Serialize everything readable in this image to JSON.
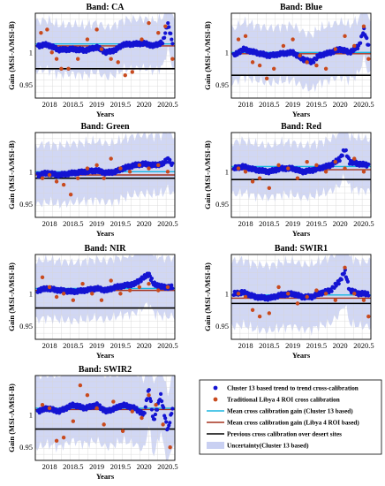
{
  "chart_data": {
    "type": "scatter",
    "panels": [
      {
        "title": "Band: CA",
        "trend": [
          [
            2017.75,
            1.01
          ],
          [
            2017.95,
            1.012
          ],
          [
            2018.2,
            1.004
          ],
          [
            2018.5,
            1.005
          ],
          [
            2018.75,
            1.003
          ],
          [
            2019.0,
            1.008
          ],
          [
            2019.2,
            1.0
          ],
          [
            2019.4,
            1.004
          ],
          [
            2019.55,
            1.012
          ],
          [
            2019.8,
            1.013
          ],
          [
            2020.0,
            1.014
          ],
          [
            2020.2,
            1.01
          ],
          [
            2020.4,
            1.016
          ],
          [
            2020.5,
            1.045
          ],
          [
            2020.6,
            1.015
          ]
        ],
        "mean_cluster": 1.013,
        "mean_libya": 1.01,
        "previous": 0.975,
        "uncertainty_halfwidth": 0.038,
        "libya_points": [
          [
            2017.82,
            1.03
          ],
          [
            2017.95,
            1.035
          ],
          [
            2018.05,
            1.0
          ],
          [
            2018.15,
            0.99
          ],
          [
            2018.25,
            0.975
          ],
          [
            2018.4,
            0.975
          ],
          [
            2018.6,
            0.99
          ],
          [
            2018.8,
            1.02
          ],
          [
            2019.0,
            1.035
          ],
          [
            2019.1,
            1.005
          ],
          [
            2019.3,
            0.99
          ],
          [
            2019.45,
            0.985
          ],
          [
            2019.6,
            0.965
          ],
          [
            2019.75,
            0.97
          ],
          [
            2019.95,
            1.02
          ],
          [
            2020.1,
            1.045
          ],
          [
            2020.3,
            1.03
          ],
          [
            2020.45,
            1.04
          ],
          [
            2020.6,
            0.99
          ]
        ]
      },
      {
        "title": "Band: Blue",
        "trend": [
          [
            2017.75,
            0.995
          ],
          [
            2017.95,
            1.005
          ],
          [
            2018.2,
            1.0
          ],
          [
            2018.5,
            0.995
          ],
          [
            2018.75,
            0.998
          ],
          [
            2019.0,
            1.0
          ],
          [
            2019.2,
            0.99
          ],
          [
            2019.4,
            0.985
          ],
          [
            2019.55,
            0.995
          ],
          [
            2019.8,
            1.0
          ],
          [
            2020.0,
            1.005
          ],
          [
            2020.2,
            1.0
          ],
          [
            2020.4,
            1.01
          ],
          [
            2020.5,
            1.035
          ],
          [
            2020.6,
            1.01
          ]
        ],
        "mean_cluster": 1.0,
        "mean_libya": 0.998,
        "previous": 0.965,
        "uncertainty_halfwidth": 0.042,
        "libya_points": [
          [
            2017.85,
            1.02
          ],
          [
            2018.0,
            1.025
          ],
          [
            2018.15,
            0.985
          ],
          [
            2018.3,
            0.98
          ],
          [
            2018.45,
            0.96
          ],
          [
            2018.6,
            0.975
          ],
          [
            2018.8,
            1.01
          ],
          [
            2019.0,
            1.02
          ],
          [
            2019.15,
            0.995
          ],
          [
            2019.3,
            0.985
          ],
          [
            2019.5,
            0.98
          ],
          [
            2019.7,
            0.975
          ],
          [
            2019.9,
            1.005
          ],
          [
            2020.1,
            1.025
          ],
          [
            2020.3,
            1.01
          ],
          [
            2020.5,
            1.04
          ],
          [
            2020.6,
            0.99
          ]
        ]
      },
      {
        "title": "Band: Green",
        "trend": [
          [
            2017.75,
            0.995
          ],
          [
            2017.95,
            0.998
          ],
          [
            2018.2,
            0.995
          ],
          [
            2018.5,
            0.998
          ],
          [
            2018.75,
            1.0
          ],
          [
            2019.0,
            1.002
          ],
          [
            2019.2,
            0.998
          ],
          [
            2019.4,
            1.0
          ],
          [
            2019.55,
            1.005
          ],
          [
            2019.8,
            1.01
          ],
          [
            2020.0,
            1.012
          ],
          [
            2020.2,
            1.01
          ],
          [
            2020.4,
            1.012
          ],
          [
            2020.5,
            1.02
          ],
          [
            2020.6,
            1.01
          ]
        ],
        "mean_cluster": 1.0,
        "mean_libya": 0.995,
        "previous": 0.99,
        "uncertainty_halfwidth": 0.045,
        "libya_points": [
          [
            2017.85,
            0.99
          ],
          [
            2018.0,
            0.995
          ],
          [
            2018.15,
            0.985
          ],
          [
            2018.3,
            0.98
          ],
          [
            2018.45,
            0.965
          ],
          [
            2018.6,
            0.99
          ],
          [
            2018.8,
            1.005
          ],
          [
            2019.0,
            1.01
          ],
          [
            2019.15,
            0.99
          ],
          [
            2019.3,
            1.02
          ],
          [
            2019.5,
            1.005
          ],
          [
            2019.7,
            1.0
          ],
          [
            2019.9,
            1.01
          ],
          [
            2020.1,
            1.005
          ],
          [
            2020.3,
            1.01
          ],
          [
            2020.5,
            1.0
          ]
        ]
      },
      {
        "title": "Band: Red",
        "trend": [
          [
            2017.75,
            1.005
          ],
          [
            2017.95,
            1.008
          ],
          [
            2018.2,
            1.003
          ],
          [
            2018.5,
            1.0
          ],
          [
            2018.75,
            1.005
          ],
          [
            2019.0,
            1.005
          ],
          [
            2019.2,
            1.0
          ],
          [
            2019.4,
            1.002
          ],
          [
            2019.55,
            1.005
          ],
          [
            2019.8,
            1.01
          ],
          [
            2020.0,
            1.02
          ],
          [
            2020.1,
            1.035
          ],
          [
            2020.2,
            1.015
          ],
          [
            2020.4,
            1.012
          ],
          [
            2020.6,
            1.01
          ]
        ],
        "mean_cluster": 1.008,
        "mean_libya": 1.003,
        "previous": 0.988,
        "uncertainty_halfwidth": 0.04,
        "libya_points": [
          [
            2017.85,
            1.005
          ],
          [
            2018.0,
            1.0
          ],
          [
            2018.15,
            0.985
          ],
          [
            2018.3,
            0.99
          ],
          [
            2018.5,
            0.975
          ],
          [
            2018.7,
            1.01
          ],
          [
            2018.9,
            1.005
          ],
          [
            2019.1,
            0.99
          ],
          [
            2019.3,
            1.015
          ],
          [
            2019.5,
            1.01
          ],
          [
            2019.7,
            1.0
          ],
          [
            2019.9,
            1.015
          ],
          [
            2020.1,
            1.005
          ],
          [
            2020.3,
            1.02
          ],
          [
            2020.5,
            1.0
          ]
        ]
      },
      {
        "title": "Band: NIR",
        "trend": [
          [
            2017.75,
            1.005
          ],
          [
            2017.95,
            1.008
          ],
          [
            2018.2,
            1.005
          ],
          [
            2018.5,
            1.003
          ],
          [
            2018.75,
            1.005
          ],
          [
            2019.0,
            1.008
          ],
          [
            2019.2,
            1.005
          ],
          [
            2019.4,
            1.01
          ],
          [
            2019.55,
            1.012
          ],
          [
            2019.8,
            1.015
          ],
          [
            2020.0,
            1.025
          ],
          [
            2020.1,
            1.03
          ],
          [
            2020.2,
            1.015
          ],
          [
            2020.4,
            1.01
          ],
          [
            2020.6,
            1.01
          ]
        ],
        "mean_cluster": 1.008,
        "mean_libya": 1.005,
        "previous": 0.978,
        "uncertainty_halfwidth": 0.045,
        "libya_points": [
          [
            2017.85,
            1.025
          ],
          [
            2018.0,
            1.01
          ],
          [
            2018.15,
            0.995
          ],
          [
            2018.3,
            1.0
          ],
          [
            2018.5,
            0.99
          ],
          [
            2018.7,
            1.015
          ],
          [
            2018.9,
            1.0
          ],
          [
            2019.1,
            0.99
          ],
          [
            2019.3,
            1.02
          ],
          [
            2019.5,
            1.0
          ],
          [
            2019.7,
            1.005
          ],
          [
            2019.9,
            1.01
          ],
          [
            2020.1,
            1.015
          ],
          [
            2020.3,
            1.005
          ],
          [
            2020.5,
            1.01
          ]
        ]
      },
      {
        "title": "Band: SWIR1",
        "trend": [
          [
            2017.75,
            1.0
          ],
          [
            2017.95,
            1.002
          ],
          [
            2018.2,
            0.995
          ],
          [
            2018.5,
            0.993
          ],
          [
            2018.75,
            0.998
          ],
          [
            2019.0,
            1.0
          ],
          [
            2019.2,
            0.995
          ],
          [
            2019.4,
            0.995
          ],
          [
            2019.55,
            1.0
          ],
          [
            2019.8,
            1.005
          ],
          [
            2020.0,
            1.02
          ],
          [
            2020.1,
            1.035
          ],
          [
            2020.2,
            1.005
          ],
          [
            2020.4,
            1.0
          ],
          [
            2020.6,
            1.0
          ]
        ],
        "mean_cluster": 0.998,
        "mean_libya": 0.993,
        "previous": 0.985,
        "uncertainty_halfwidth": 0.05,
        "libya_points": [
          [
            2017.85,
            1.0
          ],
          [
            2018.0,
            0.995
          ],
          [
            2018.15,
            0.975
          ],
          [
            2018.3,
            0.965
          ],
          [
            2018.5,
            0.97
          ],
          [
            2018.7,
            1.01
          ],
          [
            2018.9,
            1.0
          ],
          [
            2019.1,
            0.985
          ],
          [
            2019.3,
            0.995
          ],
          [
            2019.5,
            1.005
          ],
          [
            2019.7,
            1.0
          ],
          [
            2019.9,
            0.99
          ],
          [
            2020.1,
            1.04
          ],
          [
            2020.3,
            1.0
          ],
          [
            2020.5,
            0.99
          ],
          [
            2020.6,
            0.965
          ]
        ]
      },
      {
        "title": "Band: SWIR2",
        "trend": [
          [
            2017.75,
            1.005
          ],
          [
            2017.95,
            1.01
          ],
          [
            2018.2,
            1.005
          ],
          [
            2018.5,
            1.015
          ],
          [
            2018.75,
            1.01
          ],
          [
            2019.0,
            1.015
          ],
          [
            2019.2,
            1.005
          ],
          [
            2019.4,
            1.01
          ],
          [
            2019.55,
            1.015
          ],
          [
            2019.8,
            1.01
          ],
          [
            2020.0,
            1.0
          ],
          [
            2020.1,
            1.04
          ],
          [
            2020.2,
            0.99
          ],
          [
            2020.35,
            1.03
          ],
          [
            2020.5,
            0.975
          ],
          [
            2020.6,
            1.01
          ]
        ],
        "mean_cluster": 1.01,
        "mean_libya": 1.008,
        "previous": 0.978,
        "uncertainty_halfwidth": 0.055,
        "libya_points": [
          [
            2017.85,
            1.015
          ],
          [
            2018.0,
            1.01
          ],
          [
            2018.15,
            0.96
          ],
          [
            2018.3,
            0.965
          ],
          [
            2018.5,
            0.99
          ],
          [
            2018.65,
            1.045
          ],
          [
            2018.8,
            1.03
          ],
          [
            2019.0,
            1.01
          ],
          [
            2019.15,
            0.985
          ],
          [
            2019.35,
            1.02
          ],
          [
            2019.55,
            0.975
          ],
          [
            2019.75,
            1.005
          ],
          [
            2019.95,
            0.995
          ],
          [
            2020.1,
            1.03
          ],
          [
            2020.25,
            1.015
          ],
          [
            2020.4,
            0.985
          ],
          [
            2020.55,
            0.95
          ]
        ]
      }
    ],
    "xlabel": "Years",
    "ylabel": "Gain (MSI-A/MSI-B)",
    "xticks": [
      "2018",
      "2018.5",
      "2019",
      "2019.5",
      "2020",
      "2020.5"
    ],
    "xtick_values": [
      2018,
      2018.5,
      2019,
      2019.5,
      2020,
      2020.5
    ],
    "xlim": [
      2017.7,
      2020.65
    ],
    "yticks": [
      "0.95",
      "1"
    ],
    "ytick_values": [
      0.95,
      1.0
    ],
    "ylim": [
      0.93,
      1.06
    ],
    "grid": true,
    "legend": {
      "placement": "bottom-right",
      "entries": [
        "Cluster 13 based trend to trend cross-calibration",
        "Traditional Libya 4 ROI  cross calibration",
        "Mean cross calibration gain (Cluster 13 based)",
        "Mean cross calibration gain (Libya 4 ROI based)",
        "Previous cross calibration over desert sites",
        "Uncertainty(Cluster 13 based)"
      ]
    },
    "colors": {
      "trend": "#1414d2",
      "libya": "#c84a1e",
      "mean_cluster": "#19b6e0",
      "mean_libya": "#a5321e",
      "previous": "#000000",
      "uncertainty": "#c9d0f2",
      "grid": "#d6d6d6"
    }
  }
}
